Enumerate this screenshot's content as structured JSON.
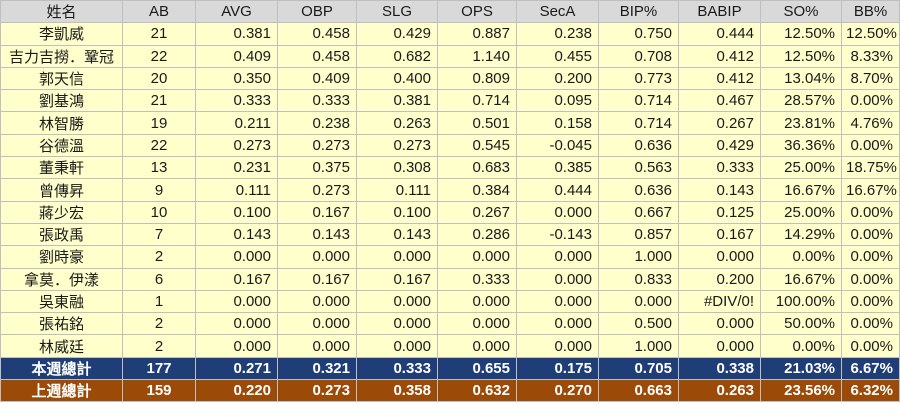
{
  "headers": [
    "姓名",
    "AB",
    "AVG",
    "OBP",
    "SLG",
    "OPS",
    "SecA",
    "BIP%",
    "BABIP",
    "SO%",
    "BB%"
  ],
  "players": [
    [
      "李凱威",
      "21",
      "0.381",
      "0.458",
      "0.429",
      "0.887",
      "0.238",
      "0.750",
      "0.444",
      "12.50%",
      "12.50%"
    ],
    [
      "吉力吉撈．鞏冠",
      "22",
      "0.409",
      "0.458",
      "0.682",
      "1.140",
      "0.455",
      "0.708",
      "0.412",
      "12.50%",
      "8.33%"
    ],
    [
      "郭天信",
      "20",
      "0.350",
      "0.409",
      "0.400",
      "0.809",
      "0.200",
      "0.773",
      "0.412",
      "13.04%",
      "8.70%"
    ],
    [
      "劉基鴻",
      "21",
      "0.333",
      "0.333",
      "0.381",
      "0.714",
      "0.095",
      "0.714",
      "0.467",
      "28.57%",
      "0.00%"
    ],
    [
      "林智勝",
      "19",
      "0.211",
      "0.238",
      "0.263",
      "0.501",
      "0.158",
      "0.714",
      "0.267",
      "23.81%",
      "4.76%"
    ],
    [
      "谷德溫",
      "22",
      "0.273",
      "0.273",
      "0.273",
      "0.545",
      "-0.045",
      "0.636",
      "0.429",
      "36.36%",
      "0.00%"
    ],
    [
      "董秉軒",
      "13",
      "0.231",
      "0.375",
      "0.308",
      "0.683",
      "0.385",
      "0.563",
      "0.333",
      "25.00%",
      "18.75%"
    ],
    [
      "曾傳昇",
      "9",
      "0.111",
      "0.273",
      "0.111",
      "0.384",
      "0.444",
      "0.636",
      "0.143",
      "16.67%",
      "16.67%"
    ],
    [
      "蔣少宏",
      "10",
      "0.100",
      "0.167",
      "0.100",
      "0.267",
      "0.000",
      "0.667",
      "0.125",
      "25.00%",
      "0.00%"
    ],
    [
      "張政禹",
      "7",
      "0.143",
      "0.143",
      "0.143",
      "0.286",
      "-0.143",
      "0.857",
      "0.167",
      "14.29%",
      "0.00%"
    ],
    [
      "劉時豪",
      "2",
      "0.000",
      "0.000",
      "0.000",
      "0.000",
      "0.000",
      "1.000",
      "0.000",
      "0.00%",
      "0.00%"
    ],
    [
      "拿莫．伊漾",
      "6",
      "0.167",
      "0.167",
      "0.167",
      "0.333",
      "0.000",
      "0.833",
      "0.200",
      "16.67%",
      "0.00%"
    ],
    [
      "吳東融",
      "1",
      "0.000",
      "0.000",
      "0.000",
      "0.000",
      "0.000",
      "0.000",
      "#DIV/0!",
      "100.00%",
      "0.00%"
    ],
    [
      "張祐銘",
      "2",
      "0.000",
      "0.000",
      "0.000",
      "0.000",
      "0.000",
      "0.500",
      "0.000",
      "50.00%",
      "0.00%"
    ],
    [
      "林威廷",
      "2",
      "0.000",
      "0.000",
      "0.000",
      "0.000",
      "0.000",
      "1.000",
      "0.000",
      "0.00%",
      "0.00%"
    ]
  ],
  "totals": [
    [
      "本週總計",
      "177",
      "0.271",
      "0.321",
      "0.333",
      "0.655",
      "0.175",
      "0.705",
      "0.338",
      "21.03%",
      "6.67%"
    ],
    [
      "上週總計",
      "159",
      "0.220",
      "0.273",
      "0.358",
      "0.632",
      "0.270",
      "0.663",
      "0.263",
      "23.56%",
      "6.32%"
    ]
  ],
  "colors": {
    "header_bg": "#d9d9d9",
    "player_row_bg": "#ffffcc",
    "this_week_bg": "#1f3e77",
    "last_week_bg": "#9c4a08",
    "border": "#bfbfbf"
  }
}
